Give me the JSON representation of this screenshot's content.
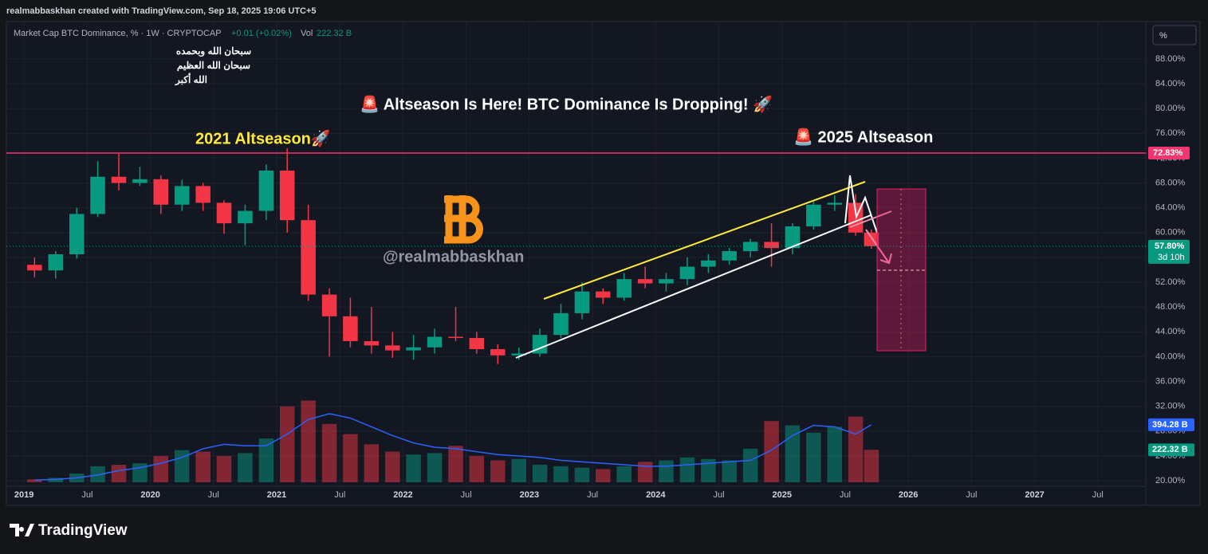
{
  "header": {
    "attribution": "realmabbaskhan created with TradingView.com, Sep 18, 2025 19:06 UTC+5",
    "legend_title": "Market Cap BTC Dominance, % · 1W · CRYPTOCAP",
    "legend_change": "+0.01 (+0.02%)",
    "legend_volume": "Vol"
  },
  "scale_button": "%",
  "brand": "TradingView",
  "chart_data": {
    "type": "candlestick",
    "title": "🚨 Altseason Is Here! BTC Dominance Is Dropping! 🚀",
    "annotations": {
      "left_label": "2021 Altseason🚀",
      "right_label": "🚨 2025 Altseason",
      "watermark": "@realmabbaskhan",
      "dua": [
        "سبحان الله وبحمده",
        "سبحان الله العظيم",
        "الله أكبر"
      ]
    },
    "x": [
      2019.083,
      2019.25,
      2019.417,
      2019.583,
      2019.75,
      2019.917,
      2020.083,
      2020.25,
      2020.417,
      2020.583,
      2020.75,
      2020.917,
      2021.083,
      2021.25,
      2021.417,
      2021.583,
      2021.75,
      2021.917,
      2022.083,
      2022.25,
      2022.417,
      2022.583,
      2022.75,
      2022.917,
      2023.083,
      2023.25,
      2023.417,
      2023.583,
      2023.75,
      2023.917,
      2024.083,
      2024.25,
      2024.417,
      2024.583,
      2024.75,
      2024.917,
      2025.083,
      2025.25,
      2025.417,
      2025.583,
      2025.708
    ],
    "open": [
      54.8,
      53.9,
      56.5,
      63.0,
      69.0,
      68.0,
      68.6,
      64.5,
      67.5,
      64.8,
      61.5,
      63.5,
      70.0,
      62.0,
      50.0,
      46.5,
      42.5,
      41.8,
      41.0,
      41.5,
      43.2,
      43.0,
      41.2,
      40.2,
      40.5,
      43.5,
      47.0,
      50.5,
      49.5,
      52.5,
      51.8,
      52.5,
      54.5,
      55.5,
      57.0,
      58.5,
      57.5,
      61.0,
      64.5,
      64.8,
      60.0
    ],
    "high": [
      56.0,
      57.0,
      64.0,
      71.5,
      72.8,
      70.6,
      69.2,
      68.5,
      68.0,
      65.2,
      64.5,
      71.0,
      73.6,
      64.5,
      51.0,
      49.5,
      48.0,
      44.0,
      43.5,
      44.5,
      48.0,
      44.0,
      42.0,
      41.5,
      44.5,
      48.5,
      52.0,
      51.0,
      53.5,
      54.5,
      53.5,
      56.0,
      56.5,
      57.5,
      59.0,
      61.5,
      61.5,
      65.0,
      66.0,
      66.2,
      60.5
    ],
    "low": [
      52.8,
      52.6,
      55.8,
      62.5,
      66.8,
      67.5,
      63.0,
      63.5,
      63.5,
      59.8,
      58.0,
      62.0,
      60.0,
      49.0,
      40.0,
      41.5,
      40.5,
      39.8,
      39.5,
      40.5,
      42.5,
      40.5,
      38.8,
      39.5,
      40.0,
      43.0,
      46.0,
      48.5,
      49.0,
      51.0,
      50.5,
      51.5,
      53.5,
      54.8,
      56.0,
      54.5,
      56.5,
      60.5,
      63.5,
      59.5,
      57.4
    ],
    "close": [
      53.9,
      56.5,
      63.0,
      69.0,
      68.0,
      68.6,
      64.5,
      67.5,
      64.8,
      61.5,
      63.5,
      70.0,
      62.0,
      50.0,
      46.5,
      42.5,
      41.8,
      41.0,
      41.5,
      43.2,
      43.0,
      41.2,
      40.2,
      40.5,
      43.5,
      47.0,
      50.5,
      49.5,
      52.5,
      51.8,
      52.5,
      54.5,
      55.5,
      57.0,
      58.5,
      57.5,
      61.0,
      64.5,
      64.8,
      60.0,
      57.8
    ],
    "volume": [
      20,
      30,
      60,
      110,
      120,
      130,
      180,
      220,
      210,
      180,
      200,
      300,
      520,
      560,
      400,
      330,
      260,
      210,
      190,
      200,
      250,
      180,
      150,
      160,
      120,
      110,
      100,
      90,
      110,
      140,
      150,
      170,
      160,
      150,
      230,
      420,
      390,
      340,
      380,
      450,
      222.32
    ],
    "volume_ma": [
      15,
      20,
      30,
      50,
      80,
      100,
      130,
      170,
      230,
      260,
      250,
      250,
      330,
      430,
      470,
      440,
      380,
      320,
      270,
      240,
      230,
      210,
      190,
      180,
      170,
      150,
      140,
      130,
      120,
      110,
      110,
      120,
      130,
      140,
      150,
      220,
      320,
      390,
      380,
      330,
      394.28
    ],
    "up_color": "#089981",
    "down_color": "#f23645",
    "ma_color": "#2962ff",
    "xlim": [
      2018.86,
      2027.88
    ],
    "ylim": [
      19.1,
      93.9
    ],
    "grid": true,
    "xticks": [
      2019,
      {
        "value": 2019.5,
        "label": "Jul"
      },
      2020,
      {
        "value": 2020.5,
        "label": "Jul"
      },
      2021,
      {
        "value": 2021.5,
        "label": "Jul"
      },
      2022,
      {
        "value": 2022.5,
        "label": "Jul"
      },
      2023,
      {
        "value": 2023.5,
        "label": "Jul"
      },
      2024,
      {
        "value": 2024.5,
        "label": "Jul"
      },
      2025,
      {
        "value": 2025.5,
        "label": "Jul"
      },
      2026,
      {
        "value": 2026.5,
        "label": "Jul"
      },
      2027,
      {
        "value": 2027.5,
        "label": "Jul"
      }
    ],
    "yticks": [
      {
        "value": 20,
        "label": "20.00%"
      },
      {
        "value": 24,
        "label": "24.00%"
      },
      {
        "value": 28,
        "label": "28.00%"
      },
      {
        "value": 32,
        "label": "32.00%"
      },
      {
        "value": 36,
        "label": "36.00%"
      },
      {
        "value": 40,
        "label": "40.00%"
      },
      {
        "value": 44,
        "label": "44.00%"
      },
      {
        "value": 48,
        "label": "48.00%"
      },
      {
        "value": 52,
        "label": "52.00%"
      },
      {
        "value": 56,
        "label": "56.00%"
      },
      {
        "value": 60,
        "label": "60.00%"
      },
      {
        "value": 64,
        "label": "64.00%"
      },
      {
        "value": 68,
        "label": "68.00%"
      },
      {
        "value": 72,
        "label": "72.00%"
      },
      {
        "value": 76,
        "label": "76.00%"
      },
      {
        "value": 80,
        "label": "80.00%"
      },
      {
        "value": 84,
        "label": "84.00%"
      },
      {
        "value": 88,
        "label": "88.00%"
      }
    ],
    "level_line": {
      "value": 72.83,
      "label": "72.83%",
      "color": "#f23670"
    },
    "last_price": {
      "value": 57.8,
      "label": "57.80%"
    },
    "countdown": "3d 10h",
    "ma_label": {
      "value": 394.28,
      "label": "394.28 B"
    },
    "volume_label": {
      "value": 222.32,
      "label": "222.32 B"
    }
  }
}
